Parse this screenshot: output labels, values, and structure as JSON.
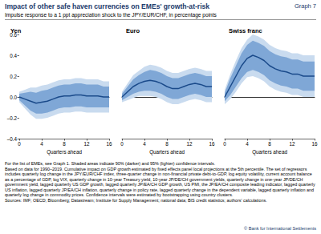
{
  "header": {
    "title": "Impact of other safe haven currencies on EMEs' growth-at-risk",
    "graph_label": "Graph 7",
    "subtitle": "Impulse response to a 1 ppt appreciation shock to the JPY/EUR/CHF, in percentage points"
  },
  "chart_data": [
    {
      "type": "line",
      "title": "Yen",
      "x_label": "Quarters ahead",
      "x": [
        0,
        1,
        2,
        3,
        4,
        5,
        6,
        7,
        8,
        9,
        10,
        11,
        12,
        13,
        14,
        15,
        16
      ],
      "xlim": [
        0,
        16
      ],
      "xticks": [
        0,
        4,
        8,
        12,
        16
      ],
      "ylim": [
        -0.4,
        0.6
      ],
      "yticks": [
        {
          "value": -0.4,
          "label": "–0.4"
        },
        {
          "value": -0.2,
          "label": "–0.2"
        },
        {
          "value": 0,
          "label": "0.0"
        },
        {
          "value": 0.2,
          "label": "0.2"
        },
        {
          "value": 0.4,
          "label": "0.4"
        },
        {
          "value": 0.6,
          "label": "0.6"
        }
      ],
      "grid": false,
      "series": [
        {
          "color": "#1a4a8a",
          "values": [
            0,
            -0.02,
            -0.04,
            -0.06,
            -0.05,
            -0.04,
            -0.02,
            0,
            0.01,
            0.01,
            0.02,
            0.02,
            0.01,
            0.01,
            0.01,
            0,
            0
          ]
        }
      ],
      "bands": [
        {
          "color": "#c9dbef",
          "lower": [
            -0.05,
            -0.11,
            -0.17,
            -0.21,
            -0.21,
            -0.2,
            -0.18,
            -0.16,
            -0.15,
            -0.15,
            -0.14,
            -0.14,
            -0.15,
            -0.15,
            -0.15,
            -0.15,
            -0.15
          ],
          "upper": [
            0.05,
            0.07,
            0.09,
            0.09,
            0.11,
            0.12,
            0.14,
            0.16,
            0.17,
            0.17,
            0.18,
            0.18,
            0.17,
            0.17,
            0.17,
            0.15,
            0.15
          ]
        },
        {
          "color": "#7fa7d6",
          "lower": [
            -0.03,
            -0.08,
            -0.13,
            -0.16,
            -0.16,
            -0.15,
            -0.13,
            -0.11,
            -0.1,
            -0.1,
            -0.09,
            -0.09,
            -0.1,
            -0.1,
            -0.1,
            -0.1,
            -0.1
          ],
          "upper": [
            0.03,
            0.04,
            0.05,
            0.04,
            0.06,
            0.07,
            0.09,
            0.11,
            0.12,
            0.12,
            0.13,
            0.13,
            0.12,
            0.12,
            0.12,
            0.1,
            0.1
          ]
        }
      ]
    },
    {
      "type": "line",
      "title": "Euro",
      "x_label": "Quarters ahead",
      "x": [
        0,
        1,
        2,
        3,
        4,
        5,
        6,
        7,
        8,
        9,
        10,
        11,
        12,
        13,
        14,
        15,
        16
      ],
      "xlim": [
        0,
        16
      ],
      "xticks": [
        0,
        4,
        8,
        12,
        16
      ],
      "ylim": [
        -0.4,
        0.6
      ],
      "yticks": [
        {
          "value": -0.4,
          "label": "–0.4"
        },
        {
          "value": -0.2,
          "label": "–0.2"
        },
        {
          "value": 0,
          "label": "0.0"
        },
        {
          "value": 0.2,
          "label": "0.2"
        },
        {
          "value": 0.4,
          "label": "0.4"
        },
        {
          "value": 0.6,
          "label": "0.6"
        }
      ],
      "grid": false,
      "tick_labels": "x",
      "series": [
        {
          "color": "#1a4a8a",
          "values": [
            0,
            0.05,
            0.1,
            0.13,
            0.15,
            0.16,
            0.15,
            0.13,
            0.1,
            0.08,
            0.08,
            0.1,
            0.12,
            0.13,
            0.12,
            0.1,
            0.1
          ]
        }
      ],
      "bands": [
        {
          "color": "#c9dbef",
          "lower": [
            -0.05,
            -0.03,
            -0.01,
            0.01,
            0.01,
            0.01,
            0,
            -0.02,
            -0.05,
            -0.07,
            -0.07,
            -0.05,
            -0.03,
            -0.02,
            -0.03,
            -0.05,
            -0.05
          ],
          "upper": [
            0.05,
            0.13,
            0.21,
            0.25,
            0.29,
            0.31,
            0.3,
            0.28,
            0.25,
            0.23,
            0.23,
            0.25,
            0.27,
            0.28,
            0.27,
            0.25,
            0.25
          ]
        },
        {
          "color": "#7fa7d6",
          "lower": [
            -0.03,
            0,
            0.03,
            0.05,
            0.06,
            0.06,
            0.05,
            0.03,
            0,
            -0.02,
            -0.02,
            0,
            0.02,
            0.03,
            0.02,
            0,
            0
          ],
          "upper": [
            0.03,
            0.1,
            0.17,
            0.21,
            0.24,
            0.26,
            0.25,
            0.23,
            0.2,
            0.18,
            0.18,
            0.2,
            0.22,
            0.23,
            0.22,
            0.2,
            0.2
          ]
        }
      ]
    },
    {
      "type": "line",
      "title": "Swiss franc",
      "x_label": "Quarters ahead",
      "x": [
        0,
        1,
        2,
        3,
        4,
        5,
        6,
        7,
        8,
        9,
        10,
        11,
        12,
        13,
        14,
        15,
        16
      ],
      "xlim": [
        0,
        16
      ],
      "xticks": [
        0,
        4,
        8,
        12,
        16
      ],
      "ylim": [
        -0.4,
        0.6
      ],
      "yticks": [
        {
          "value": -0.4,
          "label": "–0.4"
        },
        {
          "value": -0.2,
          "label": "–0.2"
        },
        {
          "value": 0,
          "label": "0.0"
        },
        {
          "value": 0.2,
          "label": "0.2"
        },
        {
          "value": 0.4,
          "label": "0.4"
        },
        {
          "value": 0.6,
          "label": "0.6"
        }
      ],
      "grid": false,
      "tick_labels": "x",
      "series": [
        {
          "color": "#1a4a8a",
          "values": [
            0,
            0.1,
            0.2,
            0.3,
            0.37,
            0.4,
            0.38,
            0.35,
            0.3,
            0.27,
            0.25,
            0.24,
            0.22,
            0.22,
            0.2,
            0.2,
            0.2
          ]
        }
      ],
      "bands": [
        {
          "color": "#c9dbef",
          "lower": [
            -0.07,
            -0.02,
            0.05,
            0.13,
            0.19,
            0.2,
            0.18,
            0.15,
            0.1,
            0.07,
            0.05,
            0.04,
            0.02,
            0.02,
            0,
            0,
            0
          ],
          "upper": [
            0.07,
            0.22,
            0.35,
            0.47,
            0.55,
            0.6,
            0.58,
            0.55,
            0.5,
            0.47,
            0.45,
            0.44,
            0.42,
            0.42,
            0.4,
            0.4,
            0.4
          ]
        },
        {
          "color": "#7fa7d6",
          "lower": [
            -0.04,
            0.02,
            0.1,
            0.18,
            0.24,
            0.26,
            0.24,
            0.21,
            0.16,
            0.13,
            0.11,
            0.1,
            0.08,
            0.08,
            0.06,
            0.06,
            0.06
          ],
          "upper": [
            0.04,
            0.18,
            0.3,
            0.42,
            0.5,
            0.54,
            0.52,
            0.49,
            0.44,
            0.41,
            0.39,
            0.38,
            0.36,
            0.36,
            0.34,
            0.34,
            0.34
          ]
        }
      ]
    }
  ],
  "footnotes": [
    "For the list of EMEs, see Graph 1. Shaded areas indicate 90% (darker) and 95% (lighter) confidence intervals.",
    "Based on data for 1990–2019. Cumulative impact on GDP growth estimated by fixed effects panel local projections at the 5th percentile. The set of regressors includes quarterly log change in the JPY/EUR/CHF index, three-quarter change in non-financial private debt-to-GDP, log equity volatility, current account balance as a percentage of GDP, log VIX, quarterly change in 10-year Treasury yield, 10-year JP/DE/CH government yields, quarterly change in one-year JP/DE/CH government yield, lagged quarterly US GDP growth, lagged quarterly JP/EA/CH GDP growth, US PMI, the JP/EA/CH composite leading indicator, lagged quarterly US inflation, lagged quarterly JP/EA/CH inflation, quarterly change in policy rate, lagged quarterly change in the dependent variable, lagged quarterly inflation and quarterly log change in commodity prices. Confidence intervals were estimated by bootstrapping using country clusters.",
    "Sources: IMF; OECD; Bloomberg; Datastream; Institute for Supply Management; national data; BIS credit statistics; authors' calculations."
  ],
  "copyright": "© Bank for International Settlements"
}
